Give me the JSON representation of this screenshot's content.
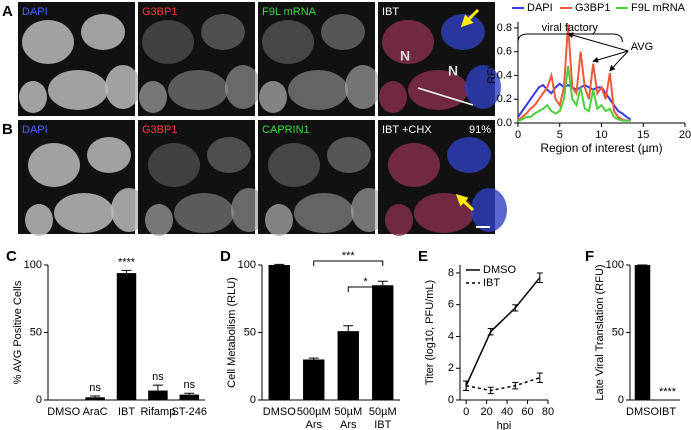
{
  "panels": {
    "A": {
      "label": "A",
      "images": [
        {
          "label": "DAPI",
          "color": "#4a66ff"
        },
        {
          "label": "G3BP1",
          "color": "#ff3b3b"
        },
        {
          "label": "F9L mRNA",
          "color": "#3ddc3d"
        },
        {
          "label": "IBT",
          "color": "#ffffff"
        }
      ],
      "nuclei": [
        "N",
        "N"
      ]
    },
    "B": {
      "label": "B",
      "images": [
        {
          "label": "DAPI",
          "color": "#4a66ff"
        },
        {
          "label": "G3BP1",
          "color": "#ff3b3b"
        },
        {
          "label": "CAPRIN1",
          "color": "#3ddc3d"
        },
        {
          "label": "IBT +CHX",
          "color": "#ffffff"
        }
      ],
      "percent": "91%"
    }
  },
  "chart_data": [
    {
      "type": "line",
      "xlabel": "Region of interest (µm)",
      "ylabel": "RFU",
      "annotations": [
        "viral factory",
        "AVG"
      ],
      "x": [
        0,
        0.5,
        1,
        1.5,
        2,
        2.5,
        3,
        3.5,
        4,
        4.5,
        5,
        5.5,
        6,
        6.5,
        7,
        7.5,
        8,
        8.5,
        9,
        9.5,
        10,
        10.5,
        11,
        11.5,
        12,
        12.5,
        13,
        13.5
      ],
      "series": [
        {
          "name": "DAPI",
          "color": "#3a3adf",
          "values": [
            0.05,
            0.1,
            0.15,
            0.2,
            0.25,
            0.3,
            0.32,
            0.28,
            0.25,
            0.3,
            0.33,
            0.3,
            0.32,
            0.3,
            0.28,
            0.3,
            0.32,
            0.3,
            0.28,
            0.3,
            0.3,
            0.25,
            0.2,
            0.15,
            0.1,
            0.08,
            0.05,
            0.03
          ]
        },
        {
          "name": "G3BP1",
          "color": "#f05a3c",
          "values": [
            0.02,
            0.05,
            0.08,
            0.12,
            0.15,
            0.2,
            0.25,
            0.3,
            0.4,
            0.2,
            0.15,
            0.3,
            0.83,
            0.3,
            0.25,
            0.6,
            0.3,
            0.2,
            0.5,
            0.25,
            0.3,
            0.2,
            0.42,
            0.1,
            0.05,
            0.03,
            0.02,
            0.02
          ]
        },
        {
          "name": "F9L mRNA",
          "color": "#4ccf3c",
          "values": [
            0.02,
            0.03,
            0.05,
            0.05,
            0.08,
            0.1,
            0.12,
            0.15,
            0.1,
            0.08,
            0.1,
            0.2,
            0.48,
            0.2,
            0.15,
            0.3,
            0.12,
            0.1,
            0.28,
            0.12,
            0.15,
            0.1,
            0.12,
            0.05,
            0.03,
            0.02,
            0.02,
            0.02
          ]
        }
      ],
      "xlim": [
        0,
        20
      ],
      "xticks": [
        0,
        5,
        10,
        15,
        20
      ],
      "ylim": [
        0,
        0.85
      ],
      "yticks": [
        {
          "value": 0,
          "label": "0.0"
        },
        {
          "value": 0.2,
          "label": "0.2"
        },
        {
          "value": 0.4,
          "label": "0.4"
        },
        {
          "value": 0.6,
          "label": "0.6"
        },
        {
          "value": 0.8,
          "label": "0.8"
        }
      ],
      "legend": "top"
    },
    {
      "type": "bar",
      "panel_label": "C",
      "ylabel": "% AVG Positive Cells",
      "categories": [
        [
          "DMSO"
        ],
        [
          "AraC"
        ],
        [
          "IBT"
        ],
        [
          "Rifamp"
        ],
        [
          "ST-246"
        ]
      ],
      "values": [
        0,
        2,
        94,
        7,
        4
      ],
      "errors": [
        0,
        1,
        2,
        4,
        1
      ],
      "value_labels": [
        null,
        "ns",
        "****",
        "ns",
        "ns"
      ],
      "color": "#000000",
      "ylim": [
        0,
        100
      ],
      "yticks": [
        0,
        50,
        100
      ]
    },
    {
      "type": "bar",
      "panel_label": "D",
      "ylabel": "Cell Metabolism (RLU)",
      "categories": [
        [
          "DMSO"
        ],
        [
          "500µM",
          "Ars"
        ],
        [
          "50µM",
          "Ars"
        ],
        [
          "50µM",
          "IBT"
        ]
      ],
      "values": [
        100,
        30,
        51,
        85
      ],
      "errors": [
        0.5,
        1,
        4,
        3
      ],
      "comparisons": [
        {
          "from": 1,
          "to": 3,
          "label": "***"
        },
        {
          "from": 2,
          "to": 3,
          "label": "*"
        }
      ],
      "color": "#000000",
      "ylim": [
        0,
        100
      ],
      "yticks": [
        0,
        50,
        100
      ]
    },
    {
      "type": "errorline",
      "panel_label": "E",
      "ylabel": "Titer (log10, PFU/mL)",
      "xlabel": "hpi",
      "x": [
        0,
        24,
        48,
        72
      ],
      "series": [
        {
          "name": "DMSO",
          "color": "#000000",
          "dash": false,
          "values": [
            0.9,
            4.3,
            5.8,
            7.7
          ],
          "errors": [
            0.3,
            0.2,
            0.2,
            0.3
          ]
        },
        {
          "name": "IBT",
          "color": "#000000",
          "dash": true,
          "values": [
            0.9,
            0.6,
            0.9,
            1.4
          ],
          "errors": [
            0.3,
            0.2,
            0.2,
            0.3
          ]
        }
      ],
      "xlim": [
        -6,
        80
      ],
      "xticks": [
        0,
        20,
        40,
        60,
        80
      ],
      "ylim": [
        0,
        8.5
      ],
      "yticks": [
        0,
        2,
        4,
        6,
        8
      ],
      "legend": "top-left"
    },
    {
      "type": "bar",
      "panel_label": "F",
      "ylabel": "Late Viral Translation (RFU)",
      "categories": [
        [
          "DMSO"
        ],
        [
          "IBT"
        ]
      ],
      "values": [
        100,
        0
      ],
      "errors": [
        0,
        0
      ],
      "value_labels": [
        null,
        "****"
      ],
      "color": "#000000",
      "ylim": [
        0,
        100
      ],
      "yticks": [
        0,
        50,
        100
      ]
    }
  ]
}
